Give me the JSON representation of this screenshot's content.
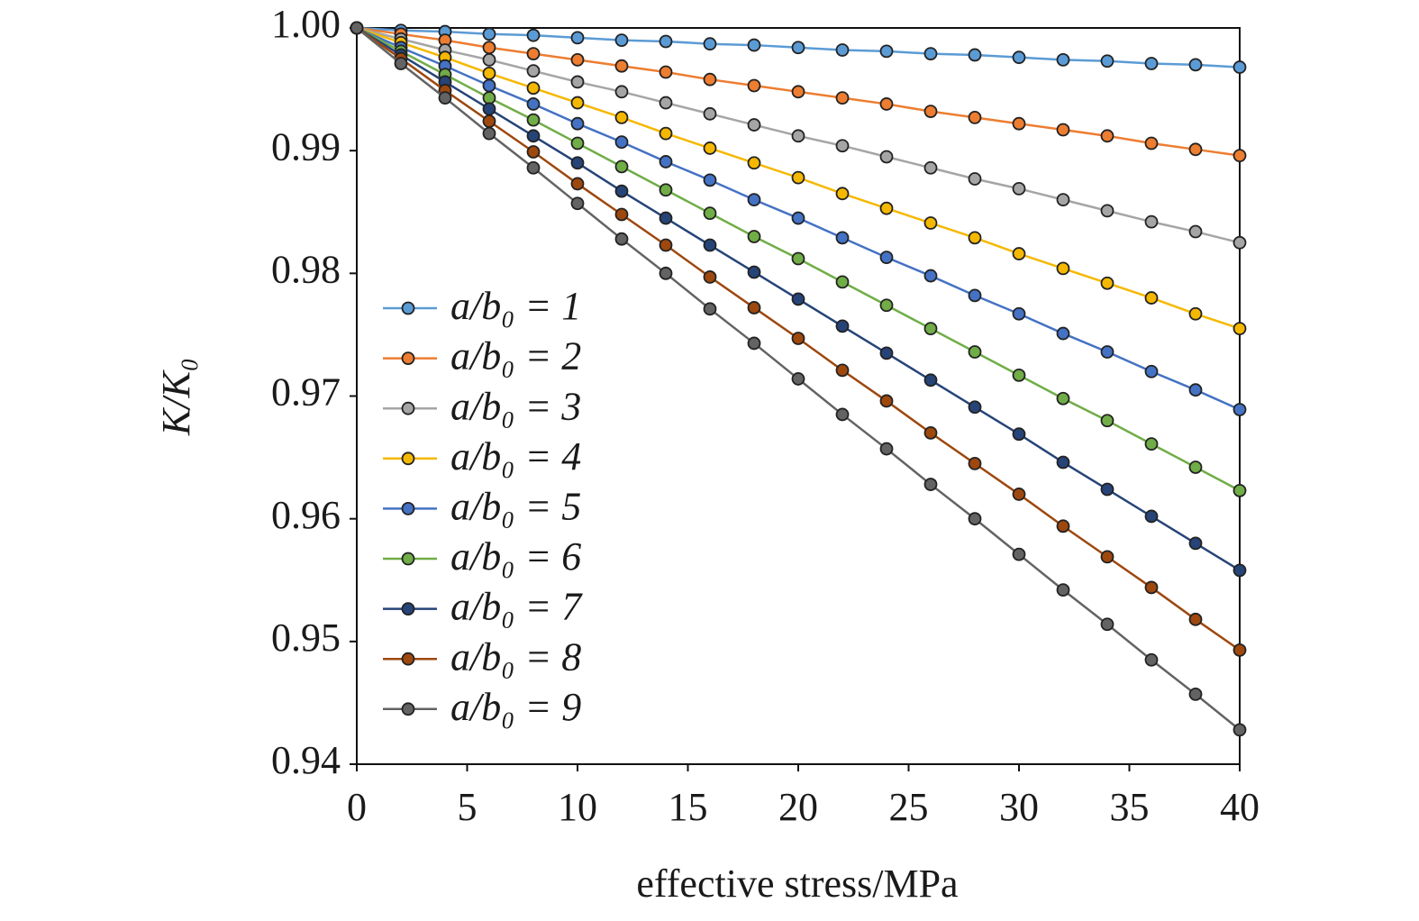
{
  "chart_data": {
    "type": "line",
    "x_label": "effective stress/MPa",
    "y_label": "K/K₀",
    "x": [
      0,
      2,
      4,
      6,
      8,
      10,
      12,
      14,
      16,
      18,
      20,
      22,
      24,
      26,
      28,
      30,
      32,
      34,
      36,
      38,
      40
    ],
    "xlim": [
      0,
      40
    ],
    "xticks": [
      0,
      5,
      10,
      15,
      20,
      25,
      30,
      35,
      40
    ],
    "ylim": [
      0.94,
      1
    ],
    "yticks": [
      {
        "value": 1,
        "label": "1.00"
      },
      0.99,
      0.98,
      0.97,
      0.96,
      0.95,
      0.94
    ],
    "legend": "left",
    "series": [
      {
        "name": "a/b₀ = 1",
        "color": "#5b9bd5",
        "values": [
          1,
          0.9998,
          0.9997,
          0.9995,
          0.9994,
          0.9992,
          0.999,
          0.9989,
          0.9987,
          0.9986,
          0.9984,
          0.9982,
          0.9981,
          0.9979,
          0.9978,
          0.9976,
          0.9974,
          0.9973,
          0.9971,
          0.997,
          0.9968
        ]
      },
      {
        "name": "a/b₀ = 2",
        "color": "#ed7d31",
        "values": [
          1,
          0.9995,
          0.999,
          0.9984,
          0.9979,
          0.9974,
          0.9969,
          0.9964,
          0.9958,
          0.9953,
          0.9948,
          0.9943,
          0.9938,
          0.9932,
          0.9927,
          0.9922,
          0.9917,
          0.9912,
          0.9906,
          0.9901,
          0.9896
        ]
      },
      {
        "name": "a/b₀ = 3",
        "color": "#a5a5a5",
        "values": [
          1,
          0.9991,
          0.9982,
          0.9974,
          0.9965,
          0.9956,
          0.9948,
          0.9939,
          0.993,
          0.9921,
          0.9912,
          0.9904,
          0.9895,
          0.9886,
          0.9877,
          0.9869,
          0.986,
          0.9851,
          0.9842,
          0.9834,
          0.9825
        ]
      },
      {
        "name": "a/b₀ = 4",
        "color": "#f5b800",
        "values": [
          1,
          0.9988,
          0.9976,
          0.9963,
          0.9951,
          0.9939,
          0.9927,
          0.9914,
          0.9902,
          0.989,
          0.9878,
          0.9865,
          0.9853,
          0.9841,
          0.9829,
          0.9816,
          0.9804,
          0.9792,
          0.978,
          0.9767,
          0.9755
        ]
      },
      {
        "name": "a/b₀ = 5",
        "color": "#4472c4",
        "values": [
          1,
          0.9984,
          0.9969,
          0.9953,
          0.9938,
          0.9922,
          0.9907,
          0.9891,
          0.9876,
          0.986,
          0.9845,
          0.9829,
          0.9813,
          0.9798,
          0.9782,
          0.9767,
          0.9751,
          0.9736,
          0.972,
          0.9705,
          0.9689
        ]
      },
      {
        "name": "a/b₀ = 6",
        "color": "#70ad47",
        "values": [
          1,
          0.9981,
          0.9962,
          0.9943,
          0.9925,
          0.9906,
          0.9887,
          0.9868,
          0.9849,
          0.983,
          0.9812,
          0.9793,
          0.9774,
          0.9755,
          0.9736,
          0.9717,
          0.9698,
          0.968,
          0.9661,
          0.9642,
          0.9623
        ]
      },
      {
        "name": "a/b₀ = 7",
        "color": "#264478",
        "values": [
          1,
          0.9978,
          0.9956,
          0.9934,
          0.9912,
          0.989,
          0.9867,
          0.9845,
          0.9823,
          0.9801,
          0.9779,
          0.9757,
          0.9735,
          0.9713,
          0.9691,
          0.9669,
          0.9646,
          0.9624,
          0.9602,
          0.958,
          0.9558
        ]
      },
      {
        "name": "a/b₀ = 8",
        "color": "#9e480e",
        "values": [
          1,
          0.9975,
          0.9949,
          0.9924,
          0.9899,
          0.9873,
          0.9848,
          0.9823,
          0.9797,
          0.9772,
          0.9747,
          0.9721,
          0.9696,
          0.967,
          0.9645,
          0.962,
          0.9594,
          0.9569,
          0.9544,
          0.9518,
          0.9493
        ]
      },
      {
        "name": "a/b₀ = 9",
        "color": "#636363",
        "values": [
          1,
          0.9971,
          0.9943,
          0.9914,
          0.9886,
          0.9857,
          0.9828,
          0.98,
          0.9771,
          0.9743,
          0.9714,
          0.9685,
          0.9657,
          0.9628,
          0.96,
          0.9571,
          0.9542,
          0.9514,
          0.9485,
          0.9457,
          0.9428
        ]
      }
    ]
  }
}
